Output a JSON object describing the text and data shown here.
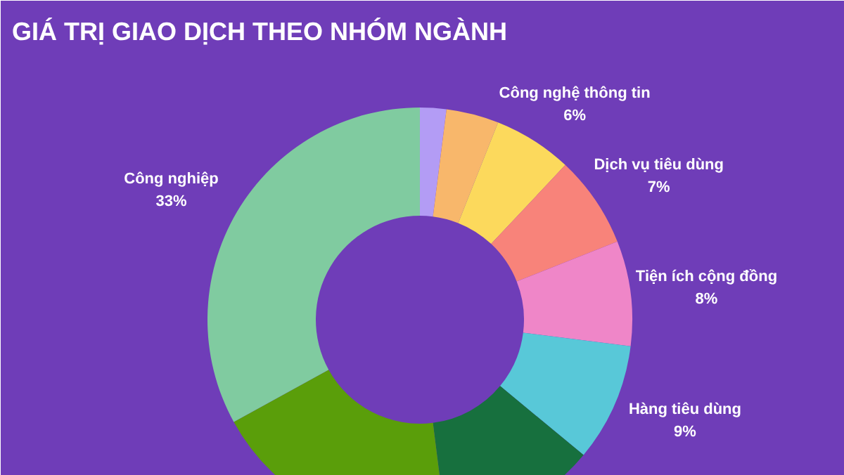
{
  "chart_data": {
    "type": "donut",
    "title": "GIÁ TRỊ GIAO DỊCH THEO NHÓM NGÀNH",
    "categories": [
      null,
      null,
      "Công nghệ thông tin",
      "Dịch vụ tiêu dùng",
      "Tiện ích cộng đồng",
      "Hàng tiêu dùng",
      null,
      null,
      "Công nghiệp"
    ],
    "values": [
      2,
      4,
      6,
      7,
      8,
      9,
      12,
      19,
      33
    ],
    "colors": [
      "#b39cf5",
      "#f8b76b",
      "#fcd95c",
      "#f8837a",
      "#ef86c8",
      "#58c8d8",
      "#17703e",
      "#5a9e0a",
      "#80cba0"
    ],
    "value_labels": [
      null,
      null,
      "6%",
      "7%",
      "8%",
      "9%",
      null,
      null,
      "33%"
    ],
    "legend": false
  }
}
